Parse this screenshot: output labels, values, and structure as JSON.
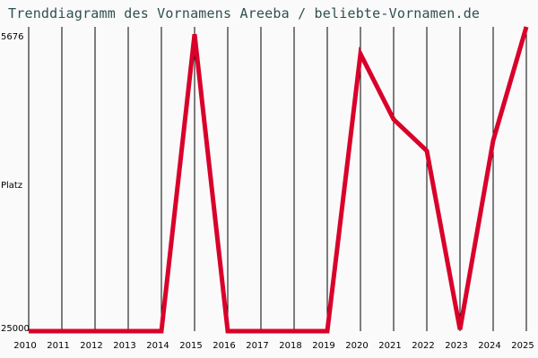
{
  "title": "Trenddiagramm des Vornamens Areeba / beliebte-Vornamen.de",
  "y_axis": {
    "top_label": "5676",
    "mid_label": "Platz",
    "bottom_label": "25000"
  },
  "colors": {
    "line": "#d9002a",
    "grid": "#000000",
    "title": "#2f4f4f",
    "background": "#fafafa"
  },
  "chart_data": {
    "type": "line",
    "title": "Trenddiagramm des Vornamens Areeba / beliebte-Vornamen.de",
    "xlabel": "",
    "ylabel": "Platz",
    "categories": [
      "2010",
      "2011",
      "2012",
      "2013",
      "2014",
      "2015",
      "2016",
      "2017",
      "2018",
      "2019",
      "2020",
      "2021",
      "2022",
      "2023",
      "2024",
      "2025"
    ],
    "series": [
      {
        "name": "Areeba",
        "values": [
          25000,
          25000,
          25000,
          25000,
          25000,
          6150,
          25000,
          25000,
          25000,
          25000,
          7400,
          11550,
          13550,
          24900,
          12900,
          5676
        ]
      }
    ],
    "ylim": [
      25000,
      5676
    ],
    "y_inverted": true,
    "grid": "vertical",
    "legend": "none"
  }
}
